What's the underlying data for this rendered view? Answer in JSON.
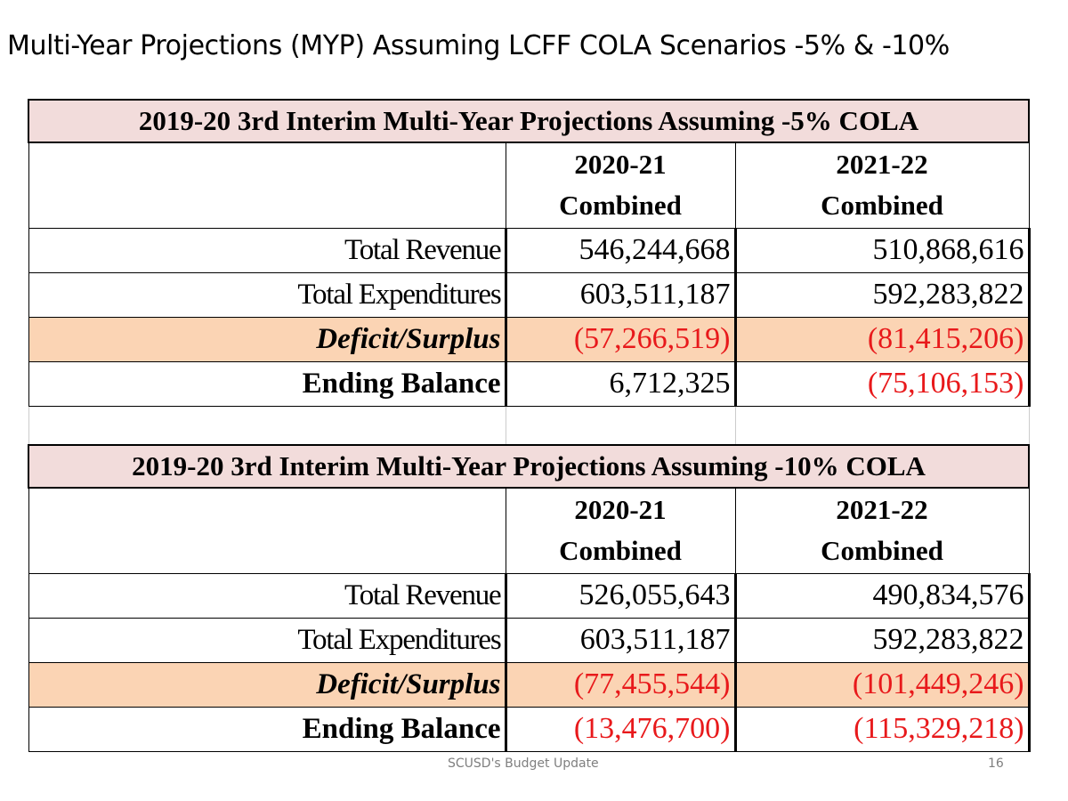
{
  "title": "Multi-Year Projections (MYP) Assuming LCFF COLA Scenarios -5% & -10%",
  "tables": [
    {
      "heading": "2019-20 3rd Interim Multi-Year Projections Assuming -5% COLA",
      "col1_year": "2020-21",
      "col1_sub": "Combined",
      "col2_year": "2021-22",
      "col2_sub": "Combined",
      "rows": [
        {
          "label": "Total Revenue",
          "v1": "546,244,668",
          "v2": "510,868,616"
        },
        {
          "label": "Total Expenditures",
          "v1": "603,511,187",
          "v2": "592,283,822"
        },
        {
          "label": "Deficit/Surplus",
          "v1": "(57,266,519)",
          "v2": "(81,415,206)"
        },
        {
          "label": "Ending Balance",
          "v1": "6,712,325",
          "v2": "(75,106,153)"
        }
      ]
    },
    {
      "heading": "2019-20 3rd Interim Multi-Year Projections Assuming -10% COLA",
      "col1_year": "2020-21",
      "col1_sub": "Combined",
      "col2_year": "2021-22",
      "col2_sub": "Combined",
      "rows": [
        {
          "label": "Total Revenue",
          "v1": "526,055,643",
          "v2": "490,834,576"
        },
        {
          "label": "Total Expenditures",
          "v1": "603,511,187",
          "v2": "592,283,822"
        },
        {
          "label": "Deficit/Surplus",
          "v1": "(77,455,544)",
          "v2": "(101,449,246)"
        },
        {
          "label": "Ending Balance",
          "v1": "(13,476,700)",
          "v2": "(115,329,218)"
        }
      ]
    }
  ],
  "footer": {
    "text": "SCUSD's Budget Update",
    "page": "16"
  },
  "colors": {
    "header_bg": "#f2dcdb",
    "deficit_bg": "#fbd4b4",
    "negative": "#e8191b"
  }
}
